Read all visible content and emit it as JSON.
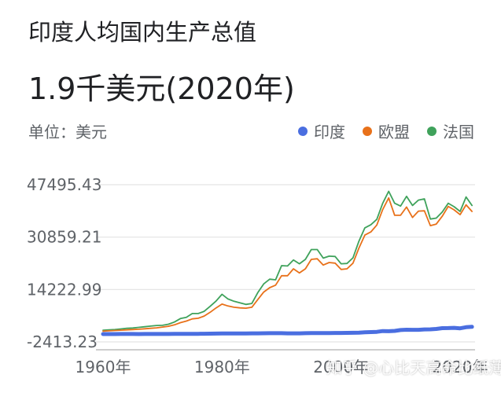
{
  "header": {
    "title": "印度人均国内生产总值",
    "headline": "1.9千美元(2020年)",
    "unit_label": "单位：美元"
  },
  "watermark": "知乎 @心比天高命比纸薄",
  "chart_data": {
    "type": "line",
    "title": "",
    "xlabel": "",
    "ylabel": "",
    "x_ticks": [
      "1960年",
      "1980年",
      "2000年",
      "2020年"
    ],
    "y_ticks": [
      "-2413.23",
      "14222.99",
      "30859.21",
      "47495.43"
    ],
    "ylim": [
      -2413.23,
      47495.43
    ],
    "xlim": [
      1960,
      2020
    ],
    "grid": "horizontal",
    "legend_position": "top-right",
    "x": [
      1960,
      1961,
      1962,
      1963,
      1964,
      1965,
      1966,
      1967,
      1968,
      1969,
      1970,
      1971,
      1972,
      1973,
      1974,
      1975,
      1976,
      1977,
      1978,
      1979,
      1980,
      1981,
      1982,
      1983,
      1984,
      1985,
      1986,
      1987,
      1988,
      1989,
      1990,
      1991,
      1992,
      1993,
      1994,
      1995,
      1996,
      1997,
      1998,
      1999,
      2000,
      2001,
      2002,
      2003,
      2004,
      2005,
      2006,
      2007,
      2008,
      2009,
      2010,
      2011,
      2012,
      2013,
      2014,
      2015,
      2016,
      2017,
      2018,
      2019,
      2020,
      2021,
      2022
    ],
    "series": [
      {
        "name": "印度",
        "color": "#4a6ee0",
        "values": [
          82,
          85,
          89,
          101,
          115,
          119,
          90,
          96,
          99,
          107,
          112,
          118,
          122,
          143,
          163,
          158,
          161,
          186,
          206,
          224,
          267,
          271,
          274,
          291,
          277,
          296,
          310,
          340,
          354,
          346,
          367,
          303,
          316,
          301,
          346,
          374,
          400,
          415,
          413,
          441,
          443,
          451,
          470,
          543,
          624,
          711,
          792,
          1018,
          991,
          1090,
          1351,
          1450,
          1434,
          1438,
          1559,
          1590,
          1714,
          1957,
          1974,
          2050,
          1913,
          2250,
          2380
        ]
      },
      {
        "name": "欧盟",
        "color": "#e8711a",
        "values": [
          1000,
          1100,
          1200,
          1300,
          1400,
          1500,
          1600,
          1750,
          1900,
          2050,
          2300,
          2550,
          3000,
          3700,
          4200,
          4900,
          5100,
          5800,
          7000,
          8400,
          9600,
          9000,
          8600,
          8400,
          8300,
          8600,
          11000,
          13400,
          14800,
          15600,
          18600,
          18600,
          20800,
          19500,
          20800,
          23800,
          24000,
          22000,
          22800,
          22600,
          20600,
          20800,
          22600,
          27400,
          31500,
          32500,
          34700,
          39600,
          43300,
          37800,
          37800,
          40400,
          37100,
          39100,
          39200,
          34500,
          35000,
          37500,
          40600,
          39500,
          38000,
          41100,
          39000
        ]
      },
      {
        "name": "法国",
        "color": "#3fa25b",
        "values": [
          1300,
          1400,
          1500,
          1700,
          1900,
          2000,
          2200,
          2400,
          2600,
          2800,
          2860,
          3200,
          3900,
          5000,
          5400,
          6600,
          6600,
          7300,
          8900,
          10600,
          12700,
          11200,
          10500,
          10000,
          9500,
          9800,
          13200,
          16000,
          17500,
          17300,
          21800,
          21700,
          23600,
          22400,
          23800,
          26900,
          26900,
          24200,
          24800,
          24700,
          22400,
          22500,
          24300,
          29600,
          33800,
          34800,
          36500,
          41600,
          45400,
          41600,
          40700,
          43800,
          40900,
          42600,
          43000,
          36600,
          36900,
          38800,
          41600,
          40500,
          39000,
          43600,
          40900
        ]
      }
    ]
  }
}
